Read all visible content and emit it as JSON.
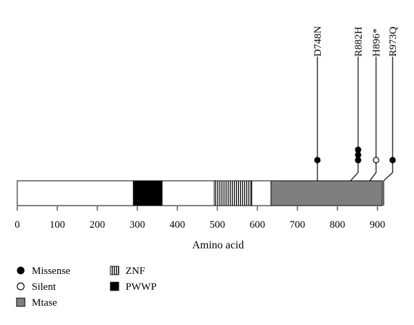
{
  "chart_data": {
    "type": "lollipop",
    "xlabel": "Amino acid",
    "xlim": [
      0,
      912
    ],
    "xticks": [
      0,
      100,
      200,
      300,
      400,
      500,
      600,
      700,
      800,
      900
    ],
    "domains": [
      {
        "name": "PWWP",
        "start": 290,
        "end": 362,
        "style": "solid-black"
      },
      {
        "name": "ZNF",
        "start": 492,
        "end": 586,
        "style": "vertical-stripes"
      },
      {
        "name": "Mtase",
        "start": 634,
        "end": 912,
        "style": "gray"
      }
    ],
    "mutations": [
      {
        "label": "D748N",
        "position": 748,
        "type": "Missense",
        "count": 1
      },
      {
        "label": "R882H",
        "position": 882,
        "type": "Missense",
        "count": 3
      },
      {
        "label": "H896*",
        "position": 896,
        "type": "Silent",
        "count": 1
      },
      {
        "label": "R973Q",
        "position": 973,
        "type": "Missense",
        "count": 1
      }
    ],
    "legend": [
      {
        "label": "Missense",
        "symbol": "filled-circle"
      },
      {
        "label": "Silent",
        "symbol": "open-circle"
      },
      {
        "label": "Mtase",
        "symbol": "gray-square"
      },
      {
        "label": "ZNF",
        "symbol": "striped-square"
      },
      {
        "label": "PWWP",
        "symbol": "black-square"
      }
    ]
  },
  "colors": {
    "mtase_gray": "#7f7f7f",
    "line": "#000000"
  }
}
